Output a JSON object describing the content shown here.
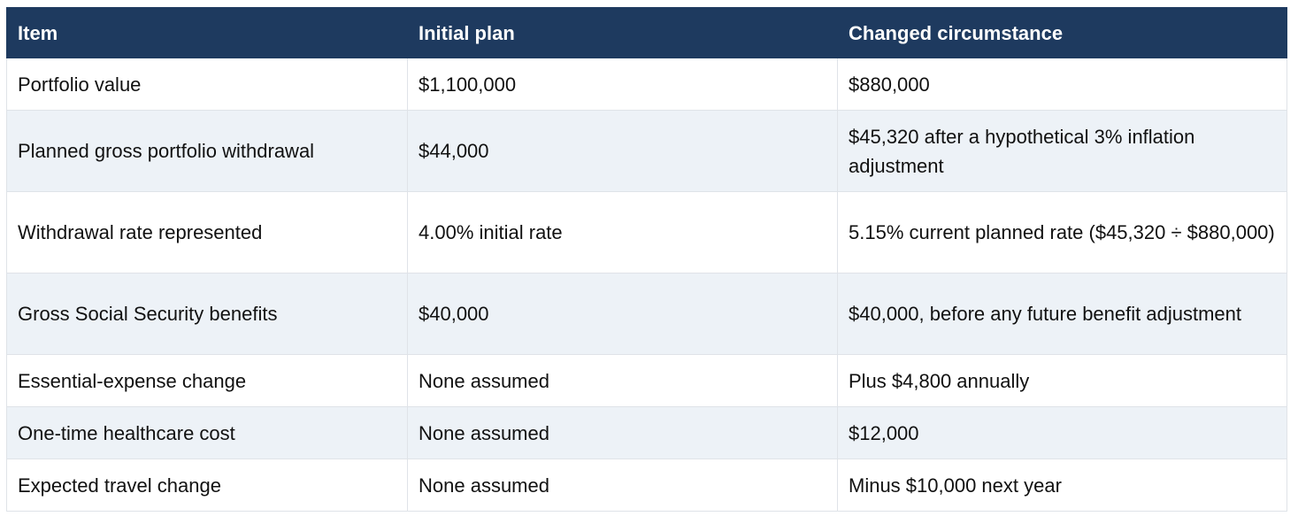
{
  "table": {
    "header": [
      "Item",
      "Initial plan",
      "Changed circumstance"
    ],
    "rows": [
      [
        "Portfolio value",
        "$1,100,000",
        "$880,000"
      ],
      [
        "Planned gross portfolio withdrawal",
        "$44,000",
        "$45,320 after a hypothetical 3% inflation adjustment"
      ],
      [
        "Withdrawal rate represented",
        "4.00% initial rate",
        "5.15% current planned rate ($45,320 ÷ $880,000)"
      ],
      [
        "Gross Social Security benefits",
        "$40,000",
        "$40,000, before any future benefit adjustment"
      ],
      [
        "Essential-expense change",
        "None assumed",
        "Plus $4,800 annually"
      ],
      [
        "One-time healthcare cost",
        "None assumed",
        "$12,000"
      ],
      [
        "Expected travel change",
        "None assumed",
        "Minus $10,000 next year"
      ]
    ]
  }
}
